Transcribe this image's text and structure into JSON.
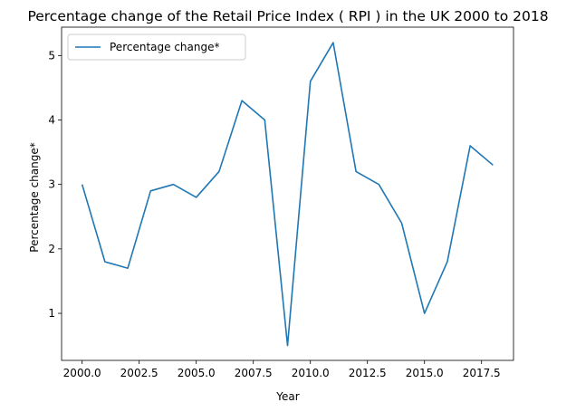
{
  "chart_data": {
    "type": "line",
    "title": "Percentage change of the Retail Price Index ( RPI ) in the UK 2000 to 2018",
    "xlabel": "Year",
    "ylabel": "Percentage change*",
    "xlim": [
      1999.1,
      2018.9
    ],
    "ylim": [
      0.27,
      5.44
    ],
    "xticks": [
      2000.0,
      2002.5,
      2005.0,
      2007.5,
      2010.0,
      2012.5,
      2015.0,
      2017.5
    ],
    "xtick_labels": [
      "2000.0",
      "2002.5",
      "2005.0",
      "2007.5",
      "2010.0",
      "2012.5",
      "2015.0",
      "2017.5"
    ],
    "yticks": [
      1,
      2,
      3,
      4,
      5
    ],
    "ytick_labels": [
      "1",
      "2",
      "3",
      "4",
      "5"
    ],
    "grid": false,
    "legend_position": "top-left",
    "series": [
      {
        "name": "Percentage change*",
        "color": "#1f77b4",
        "x": [
          2000,
          2001,
          2002,
          2003,
          2004,
          2005,
          2006,
          2007,
          2008,
          2009,
          2010,
          2011,
          2012,
          2013,
          2014,
          2015,
          2016,
          2017,
          2018
        ],
        "values": [
          3.0,
          1.8,
          1.7,
          2.9,
          3.0,
          2.8,
          3.2,
          4.3,
          4.0,
          0.5,
          4.6,
          5.2,
          3.2,
          3.0,
          2.4,
          1.0,
          1.8,
          3.6,
          3.3
        ]
      }
    ]
  }
}
